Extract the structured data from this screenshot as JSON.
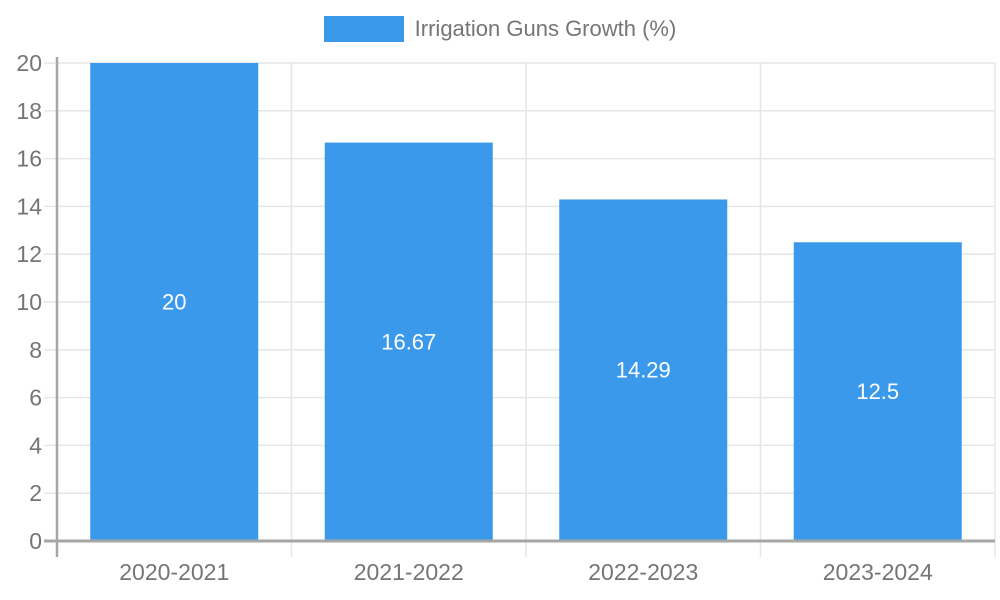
{
  "chart_data": {
    "type": "bar",
    "series_name": "Irrigation Guns Growth (%)",
    "categories": [
      "2020-2021",
      "2021-2022",
      "2022-2023",
      "2023-2024"
    ],
    "values": [
      20,
      16.67,
      14.29,
      12.5
    ],
    "value_labels": [
      "20",
      "16.67",
      "14.29",
      "12.5"
    ],
    "xlabel": "",
    "ylabel": "",
    "ylim": [
      0,
      20
    ],
    "yticks": [
      0,
      2,
      4,
      6,
      8,
      10,
      12,
      14,
      16,
      18,
      20
    ],
    "grid": true,
    "legend_position": "top-center",
    "colors": {
      "bar": "#3B99EC",
      "grid": "#E6E6E6",
      "axis": "#A6A6A6",
      "tick_text": "#757575",
      "value_text": "#FFFFFF"
    }
  }
}
